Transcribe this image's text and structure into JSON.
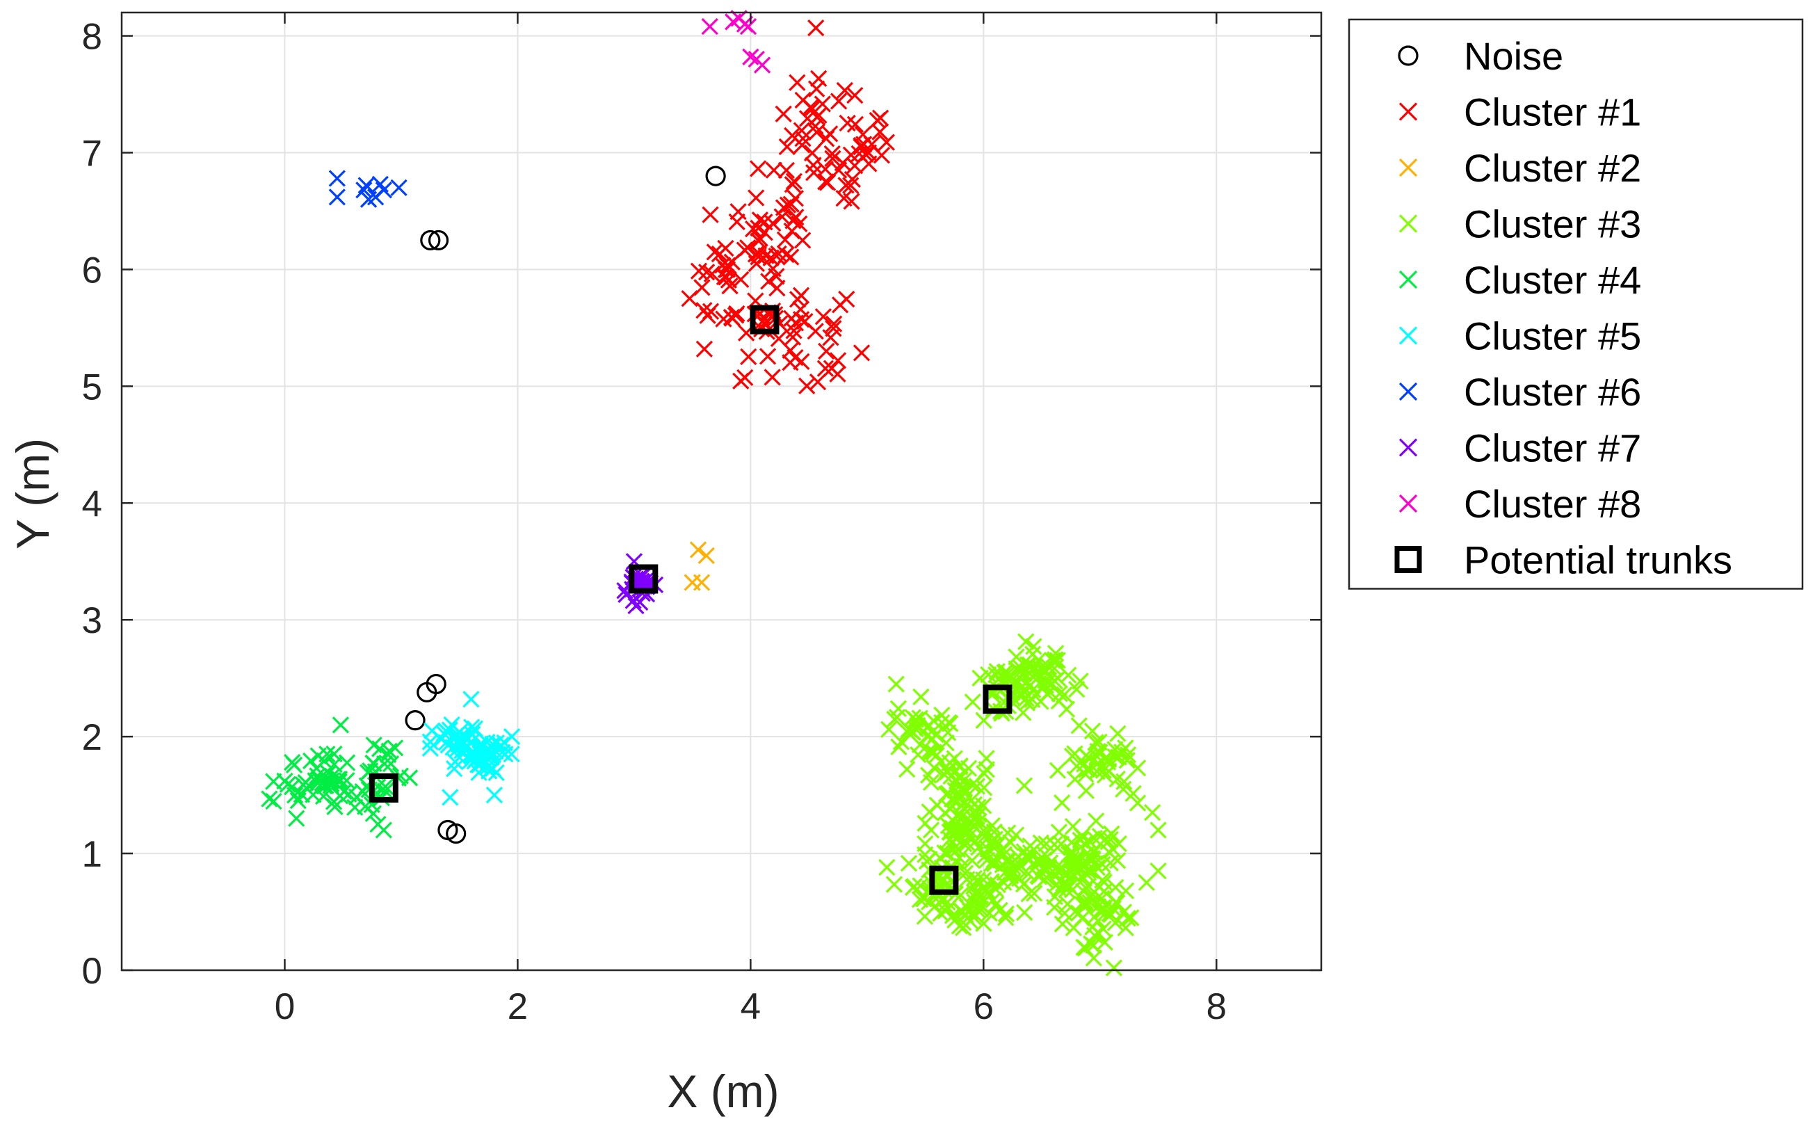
{
  "chart_data": {
    "type": "scatter",
    "title": "",
    "xlabel": "X (m)",
    "ylabel": "Y (m)",
    "xlim": [
      -1.4,
      8.9
    ],
    "ylim": [
      0,
      8.2
    ],
    "xticks": [
      0,
      2,
      4,
      6,
      8
    ],
    "yticks": [
      0,
      1,
      2,
      3,
      4,
      5,
      6,
      7,
      8
    ],
    "grid": true,
    "legend_position": "outside-top-right",
    "series": [
      {
        "name": "Noise",
        "marker": "circle",
        "color": "#000000",
        "points": [
          [
            1.25,
            6.25
          ],
          [
            1.32,
            6.25
          ],
          [
            3.7,
            6.8
          ],
          [
            1.3,
            2.45
          ],
          [
            1.22,
            2.38
          ],
          [
            1.12,
            2.14
          ],
          [
            1.4,
            1.2
          ],
          [
            1.47,
            1.17
          ]
        ]
      },
      {
        "name": "Cluster #1",
        "marker": "x",
        "color": "#ff0000",
        "centers": [
          [
            4.15,
            5.6
          ],
          [
            4.0,
            6.2
          ],
          [
            4.3,
            6.6
          ],
          [
            4.6,
            7.2
          ],
          [
            4.9,
            7.0
          ],
          [
            4.5,
            5.4
          ],
          [
            3.8,
            5.8
          ]
        ],
        "spread": [
          0.32,
          0.38
        ],
        "count": 170,
        "points": [
          [
            4.4,
            7.6
          ],
          [
            4.45,
            7.45
          ],
          [
            4.95,
            7.05
          ],
          [
            3.6,
            5.65
          ],
          [
            4.75,
            5.22
          ],
          [
            4.2,
            6.85
          ],
          [
            3.8,
            6.0
          ],
          [
            4.65,
            5.3
          ]
        ]
      },
      {
        "name": "Cluster #2",
        "marker": "x",
        "color": "#ffb000",
        "points": [
          [
            3.55,
            3.6
          ],
          [
            3.62,
            3.55
          ],
          [
            3.5,
            3.32
          ],
          [
            3.58,
            3.32
          ]
        ]
      },
      {
        "name": "Cluster #3",
        "marker": "x",
        "color": "#80ff00",
        "centers": [
          [
            5.5,
            2.0
          ],
          [
            5.8,
            1.6
          ],
          [
            6.2,
            2.4
          ],
          [
            6.5,
            2.5
          ],
          [
            7.0,
            1.8
          ],
          [
            6.9,
            1.0
          ],
          [
            6.3,
            0.9
          ],
          [
            5.65,
            0.7
          ],
          [
            6.0,
            0.6
          ],
          [
            7.0,
            0.5
          ],
          [
            6.6,
            0.8
          ],
          [
            5.8,
            1.2
          ]
        ],
        "spread": [
          0.24,
          0.24
        ],
        "count": 520,
        "points": [
          [
            7.12,
            0.02
          ],
          [
            7.45,
            1.35
          ],
          [
            7.5,
            1.2
          ],
          [
            7.5,
            0.85
          ],
          [
            7.4,
            0.75
          ],
          [
            6.35,
            1.58
          ],
          [
            5.55,
            1.2
          ],
          [
            5.25,
            2.45
          ],
          [
            7.2,
            1.55
          ]
        ]
      },
      {
        "name": "Cluster #4",
        "marker": "x",
        "color": "#00ee44",
        "centers": [
          [
            0.4,
            1.65
          ],
          [
            0.65,
            1.5
          ],
          [
            0.85,
            1.8
          ],
          [
            0.2,
            1.6
          ]
        ],
        "spread": [
          0.22,
          0.2
        ],
        "count": 75,
        "points": [
          [
            0.0,
            1.62
          ],
          [
            0.1,
            1.3
          ],
          [
            0.48,
            2.1
          ],
          [
            0.85,
            1.2
          ],
          [
            0.8,
            1.25
          ]
        ]
      },
      {
        "name": "Cluster #5",
        "marker": "x",
        "color": "#00ffff",
        "centers": [
          [
            1.6,
            1.9
          ],
          [
            1.75,
            1.8
          ],
          [
            1.45,
            2.0
          ]
        ],
        "spread": [
          0.15,
          0.15
        ],
        "count": 70,
        "points": [
          [
            1.6,
            2.32
          ],
          [
            1.42,
            1.48
          ],
          [
            1.8,
            1.5
          ],
          [
            1.95,
            2.0
          ],
          [
            1.25,
            1.9
          ]
        ]
      },
      {
        "name": "Cluster #6",
        "marker": "x",
        "color": "#0040ff",
        "points": [
          [
            0.45,
            6.78
          ],
          [
            0.45,
            6.62
          ],
          [
            0.68,
            6.68
          ],
          [
            0.72,
            6.6
          ],
          [
            0.78,
            6.62
          ],
          [
            0.82,
            6.73
          ],
          [
            0.85,
            6.68
          ],
          [
            0.98,
            6.7
          ],
          [
            0.7,
            6.72
          ]
        ]
      },
      {
        "name": "Cluster #7",
        "marker": "x",
        "color": "#7f00ff",
        "centers": [
          [
            3.05,
            3.3
          ]
        ],
        "spread": [
          0.07,
          0.08
        ],
        "count": 28,
        "points": [
          [
            2.92,
            3.25
          ],
          [
            3.18,
            3.3
          ],
          [
            3.0,
            3.5
          ],
          [
            3.05,
            3.15
          ]
        ]
      },
      {
        "name": "Cluster #8",
        "marker": "x",
        "color": "#ff00cc",
        "points": [
          [
            3.65,
            8.08
          ],
          [
            3.85,
            8.12
          ],
          [
            3.95,
            8.1
          ],
          [
            3.9,
            8.15
          ],
          [
            3.98,
            8.08
          ],
          [
            4.05,
            7.8
          ],
          [
            4.1,
            7.75
          ],
          [
            4.0,
            7.82
          ]
        ]
      },
      {
        "name": "Potential trunks",
        "marker": "square",
        "color": "#000000",
        "points": [
          [
            4.12,
            5.57
          ],
          [
            3.08,
            3.35
          ],
          [
            0.85,
            1.56
          ],
          [
            6.12,
            2.32
          ],
          [
            5.66,
            0.77
          ]
        ]
      }
    ]
  }
}
